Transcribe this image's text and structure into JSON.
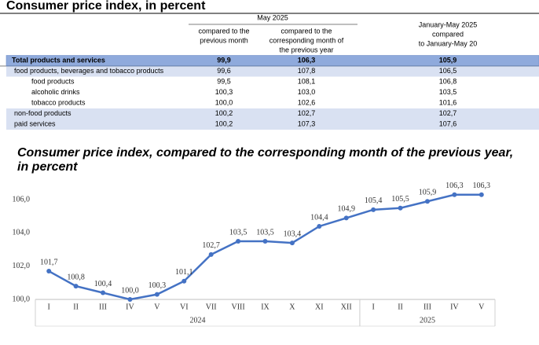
{
  "header": {
    "title": "Consumer price index, in percent"
  },
  "table": {
    "group_header": "May 2025",
    "columns": [
      [
        "compared to the",
        "previous month"
      ],
      [
        "compared to the",
        "corresponding month of",
        "the previous year"
      ],
      [
        "January-May 2025",
        "compared",
        "to January-May 20"
      ]
    ],
    "rows": [
      [
        "Total products and services",
        "99,9",
        "106,3",
        "105,9"
      ],
      [
        "food products, beverages and tobacco products",
        "99,6",
        "107,8",
        "106,5"
      ],
      [
        "food products",
        "99,5",
        "108,1",
        "106,8"
      ],
      [
        "alcoholic drinks",
        "100,3",
        "103,0",
        "103,5"
      ],
      [
        "tobacco products",
        "100,0",
        "102,6",
        "101,6"
      ],
      [
        "non-food products",
        "100,2",
        "102,7",
        "102,7"
      ],
      [
        "paid services",
        "100,2",
        "107,3",
        "107,6"
      ]
    ]
  },
  "chart_data": {
    "type": "line",
    "title": [
      "Consumer price index, compared to the corresponding month of the previous year,",
      "in percent"
    ],
    "categories": [
      "I",
      "II",
      "III",
      "IV",
      "V",
      "VI",
      "VII",
      "VIII",
      "IX",
      "X",
      "XI",
      "XII",
      "I",
      "II",
      "III",
      "IV",
      "V"
    ],
    "groups": [
      {
        "label": "2024",
        "span": [
          0,
          11
        ]
      },
      {
        "label": "2025",
        "span": [
          12,
          16
        ]
      }
    ],
    "series": [
      {
        "color": "#4472c4",
        "values": [
          101.7,
          100.8,
          100.4,
          100.0,
          100.3,
          101.1,
          102.7,
          103.5,
          103.5,
          103.4,
          104.4,
          104.9,
          105.4,
          105.5,
          105.9,
          106.3,
          106.3
        ],
        "value_labels": [
          "101,7",
          "100,8",
          "100,4",
          "100,0",
          "100,3",
          "101,1",
          "102,7",
          "103,5",
          "103,5",
          "103,4",
          "104,4",
          "104,9",
          "105,4",
          "105,5",
          "105,9",
          "106,3",
          "106,3"
        ]
      }
    ],
    "ylim": [
      100,
      107
    ],
    "yticks": [
      {
        "value": 100,
        "label": "100,0"
      },
      {
        "value": 102,
        "label": "102,0"
      },
      {
        "value": 104,
        "label": "104,0"
      },
      {
        "value": 106,
        "label": "106,0"
      }
    ],
    "grid": false
  }
}
